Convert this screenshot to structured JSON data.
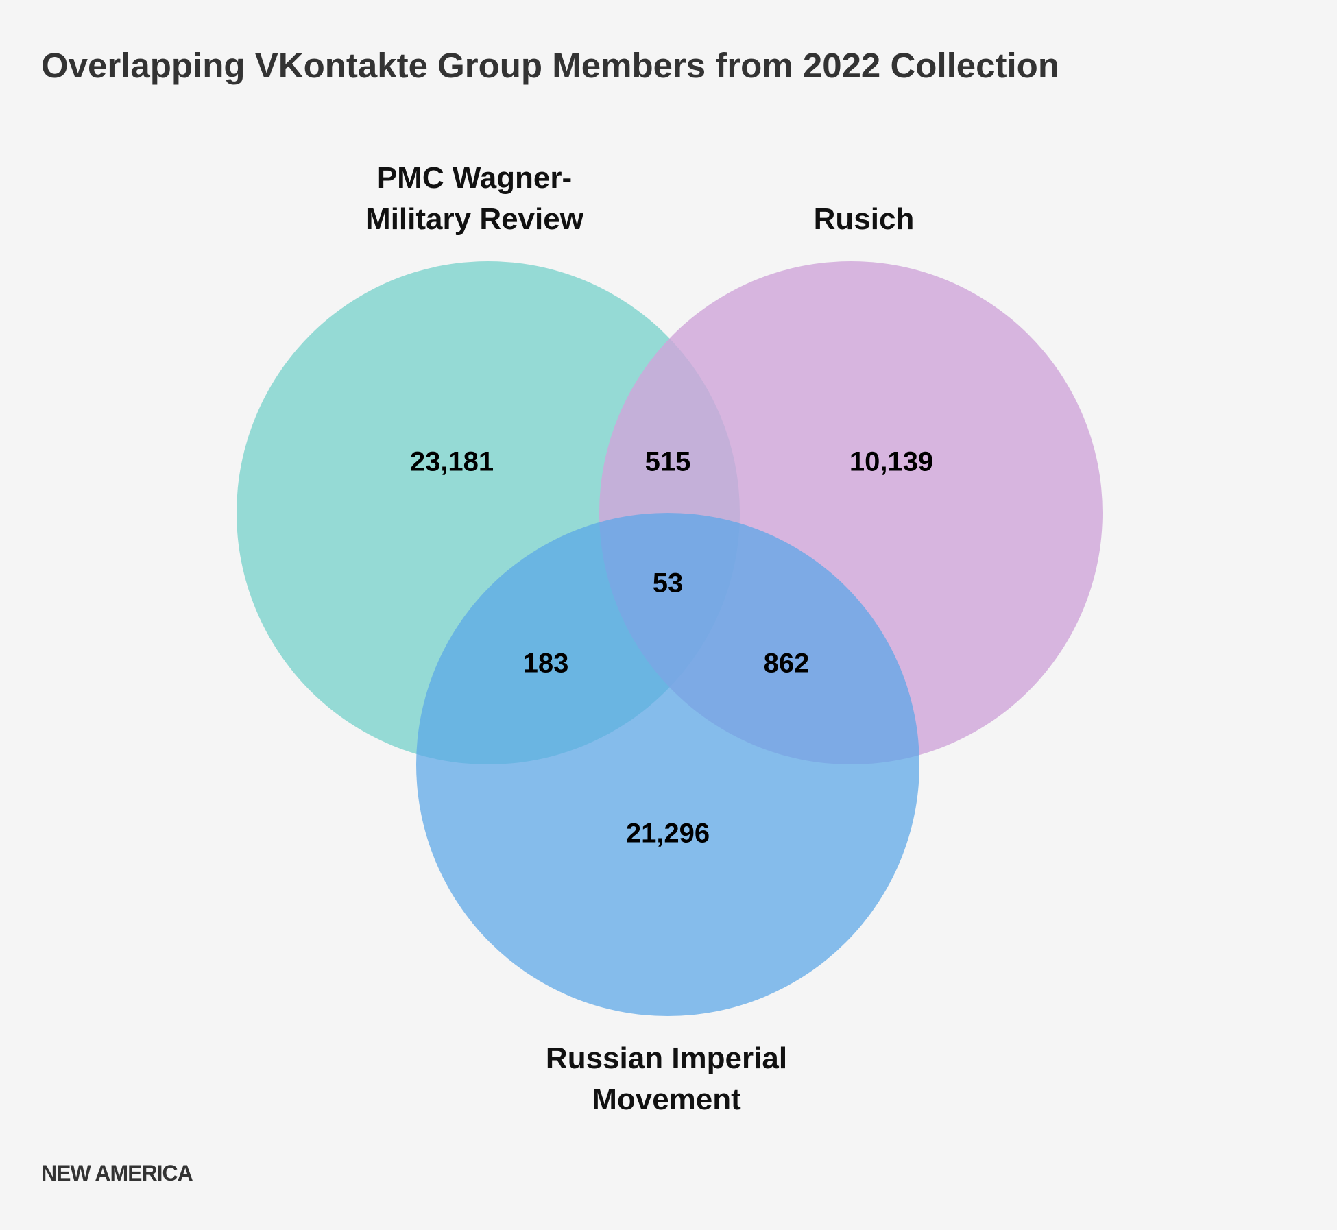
{
  "title": "Overlapping VKontakte Group Members from 2022 Collection",
  "sets": {
    "wagner": {
      "label_line1": "PMC Wagner-",
      "label_line2": "Military Review",
      "color": "#7dd3cd"
    },
    "rusich": {
      "label_line1": "Rusich",
      "color": "#d0a5da"
    },
    "rim": {
      "label_line1": "Russian Imperial",
      "label_line2": "Movement",
      "color": "#5aa6e8"
    }
  },
  "regions": {
    "wagner_only": "23,181",
    "rusich_only": "10,139",
    "rim_only": "21,296",
    "wagner_rusich": "515",
    "wagner_rim": "183",
    "rusich_rim": "862",
    "all_three": "53"
  },
  "footer": "NEW AMERICA"
}
